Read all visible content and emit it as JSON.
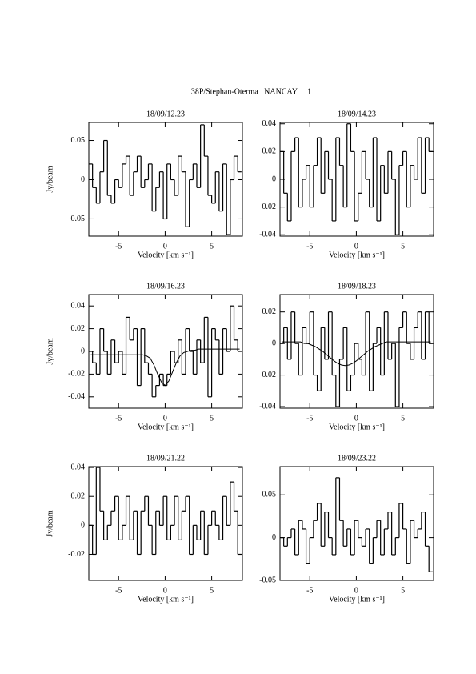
{
  "title": "38P/Stephan-Oterma   NANCAY     1",
  "chart_data": [
    {
      "type": "line",
      "title": "18/09/12.23",
      "x_label": "Velocity [km s⁻¹]",
      "y_label": "Jy/beam",
      "x": [
        -8,
        -7.6,
        -7.2,
        -6.8,
        -6.4,
        -6,
        -5.6,
        -5.2,
        -4.8,
        -4.4,
        -4,
        -3.6,
        -3.2,
        -2.8,
        -2.4,
        -2,
        -1.6,
        -1.2,
        -0.8,
        -0.4,
        0,
        0.4,
        0.8,
        1.2,
        1.6,
        2,
        2.4,
        2.8,
        3.2,
        3.6,
        4,
        4.4,
        4.8,
        5.2,
        5.6,
        6,
        6.4,
        6.8,
        7.2,
        7.6,
        8
      ],
      "series": [
        {
          "color": "#000000",
          "step": true,
          "values": [
            0.02,
            -0.01,
            -0.03,
            0.01,
            0.05,
            -0.02,
            -0.03,
            0.0,
            -0.01,
            0.02,
            0.03,
            -0.02,
            0.01,
            0.03,
            -0.01,
            0.0,
            0.02,
            -0.04,
            -0.01,
            0.01,
            -0.05,
            0.02,
            0.0,
            -0.02,
            0.03,
            0.01,
            -0.06,
            0.0,
            0.02,
            -0.01,
            0.07,
            0.03,
            -0.02,
            -0.03,
            0.01,
            -0.04,
            0.02,
            -0.07,
            0.0,
            0.03,
            0.01
          ]
        }
      ],
      "xlim": [
        -8.2,
        8.3
      ],
      "xticks": [
        -5,
        0,
        5
      ],
      "ylim": [
        -0.072,
        0.073
      ],
      "yticks": [
        -0.05,
        0,
        0.05
      ]
    },
    {
      "type": "line",
      "title": "18/09/14.23",
      "x_label": "Velocity [km s⁻¹]",
      "x": [
        -8,
        -7.6,
        -7.2,
        -6.8,
        -6.4,
        -6,
        -5.6,
        -5.2,
        -4.8,
        -4.4,
        -4,
        -3.6,
        -3.2,
        -2.8,
        -2.4,
        -2,
        -1.6,
        -1.2,
        -0.8,
        -0.4,
        0,
        0.4,
        0.8,
        1.2,
        1.6,
        2,
        2.4,
        2.8,
        3.2,
        3.6,
        4,
        4.4,
        4.8,
        5.2,
        5.6,
        6,
        6.4,
        6.8,
        7.2,
        7.6,
        8
      ],
      "series": [
        {
          "color": "#000000",
          "step": true,
          "values": [
            0.02,
            -0.01,
            -0.03,
            0.02,
            0.03,
            -0.02,
            0.0,
            0.01,
            -0.02,
            0.01,
            0.03,
            -0.01,
            0.02,
            0.0,
            -0.03,
            0.03,
            0.01,
            -0.02,
            0.04,
            0.02,
            -0.03,
            -0.01,
            0.02,
            0.0,
            -0.02,
            0.03,
            -0.03,
            0.01,
            -0.01,
            0.02,
            0.0,
            -0.04,
            0.01,
            0.02,
            -0.02,
            0.01,
            0.0,
            0.03,
            -0.01,
            0.03,
            0.02
          ]
        }
      ],
      "xlim": [
        -8.2,
        8.3
      ],
      "xticks": [
        -5,
        0,
        5
      ],
      "ylim": [
        -0.041,
        0.041
      ],
      "yticks": [
        -0.04,
        -0.02,
        0,
        0.02,
        0.04
      ]
    },
    {
      "type": "line",
      "title": "18/09/16.23",
      "x_label": "Velocity [km s⁻¹]",
      "y_label": "Jy/beam",
      "x": [
        -8,
        -7.6,
        -7.2,
        -6.8,
        -6.4,
        -6,
        -5.6,
        -5.2,
        -4.8,
        -4.4,
        -4,
        -3.6,
        -3.2,
        -2.8,
        -2.4,
        -2,
        -1.6,
        -1.2,
        -0.8,
        -0.4,
        0,
        0.4,
        0.8,
        1.2,
        1.6,
        2,
        2.4,
        2.8,
        3.2,
        3.6,
        4,
        4.4,
        4.8,
        5.2,
        5.6,
        6,
        6.4,
        6.8,
        7.2,
        7.6,
        8
      ],
      "series": [
        {
          "color": "#000000",
          "step": true,
          "values": [
            0.0,
            -0.01,
            -0.02,
            0.02,
            0.0,
            -0.02,
            0.01,
            -0.01,
            0.0,
            -0.02,
            0.03,
            0.01,
            0.02,
            -0.03,
            0.02,
            -0.01,
            -0.02,
            -0.04,
            -0.03,
            -0.02,
            -0.03,
            -0.02,
            0.0,
            -0.01,
            0.01,
            -0.02,
            0.02,
            0.0,
            -0.02,
            0.01,
            -0.01,
            0.03,
            -0.04,
            0.02,
            0.01,
            -0.02,
            0.02,
            0.0,
            0.04,
            0.01,
            0.0
          ]
        },
        {
          "color": "#000000",
          "values": [
            -0.003,
            -0.003,
            -0.003,
            -0.003,
            -0.003,
            -0.003,
            -0.003,
            -0.003,
            -0.003,
            -0.003,
            -0.003,
            -0.003,
            -0.003,
            -0.003,
            -0.003,
            -0.004,
            -0.006,
            -0.012,
            -0.02,
            -0.027,
            -0.03,
            -0.026,
            -0.018,
            -0.01,
            -0.004,
            -0.001,
            0.0,
            0.001,
            0.001,
            0.002,
            0.002,
            0.002,
            0.002,
            0.002,
            0.002,
            0.002,
            0.002,
            0.002,
            0.002,
            0.002,
            0.002
          ]
        }
      ],
      "xlim": [
        -8.2,
        8.3
      ],
      "xticks": [
        -5,
        0,
        5
      ],
      "ylim": [
        -0.05,
        0.05
      ],
      "yticks": [
        -0.04,
        -0.02,
        0,
        0.02,
        0.04
      ]
    },
    {
      "type": "line",
      "title": "18/09/18.23",
      "x_label": "Velocity [km s⁻¹]",
      "x": [
        -8,
        -7.6,
        -7.2,
        -6.8,
        -6.4,
        -6,
        -5.6,
        -5.2,
        -4.8,
        -4.4,
        -4,
        -3.6,
        -3.2,
        -2.8,
        -2.4,
        -2,
        -1.6,
        -1.2,
        -0.8,
        -0.4,
        0,
        0.4,
        0.8,
        1.2,
        1.6,
        2,
        2.4,
        2.8,
        3.2,
        3.6,
        4,
        4.4,
        4.8,
        5.2,
        5.6,
        6,
        6.4,
        6.8,
        7.2,
        7.6,
        8
      ],
      "series": [
        {
          "color": "#000000",
          "step": true,
          "values": [
            0.0,
            0.01,
            -0.01,
            0.02,
            0.0,
            -0.02,
            0.01,
            0.0,
            0.02,
            -0.02,
            -0.03,
            0.01,
            -0.01,
            0.02,
            -0.02,
            -0.04,
            -0.01,
            0.01,
            -0.03,
            -0.02,
            0.0,
            -0.01,
            -0.02,
            0.02,
            -0.03,
            0.0,
            0.01,
            -0.02,
            0.02,
            -0.01,
            0.0,
            -0.04,
            0.01,
            0.02,
            0.0,
            -0.01,
            0.01,
            0.02,
            -0.01,
            0.02,
            0.0
          ]
        },
        {
          "color": "#000000",
          "values": [
            0.001,
            0.001,
            0.001,
            0.001,
            0.001,
            0.001,
            0.0,
            0.0,
            -0.001,
            -0.002,
            -0.0035,
            -0.005,
            -0.007,
            -0.009,
            -0.011,
            -0.0126,
            -0.0136,
            -0.014,
            -0.0136,
            -0.0126,
            -0.011,
            -0.009,
            -0.007,
            -0.005,
            -0.0035,
            -0.002,
            -0.001,
            0.0,
            0.001,
            0.001,
            0.001,
            0.001,
            0.001,
            0.001,
            0.001,
            0.001,
            0.001,
            0.001,
            0.001,
            0.001,
            0.001
          ]
        }
      ],
      "xlim": [
        -8.2,
        8.3
      ],
      "xticks": [
        -5,
        0,
        5
      ],
      "ylim": [
        -0.041,
        0.031
      ],
      "yticks": [
        -0.04,
        -0.02,
        0,
        0.02
      ]
    },
    {
      "type": "line",
      "title": "18/09/21.22",
      "x_label": "Velocity [km s⁻¹]",
      "y_label": "Jy/beam",
      "x": [
        -8,
        -7.6,
        -7.2,
        -6.8,
        -6.4,
        -6,
        -5.6,
        -5.2,
        -4.8,
        -4.4,
        -4,
        -3.6,
        -3.2,
        -2.8,
        -2.4,
        -2,
        -1.6,
        -1.2,
        -0.8,
        -0.4,
        0,
        0.4,
        0.8,
        1.2,
        1.6,
        2,
        2.4,
        2.8,
        3.2,
        3.6,
        4,
        4.4,
        4.8,
        5.2,
        5.6,
        6,
        6.4,
        6.8,
        7.2,
        7.6,
        8
      ],
      "series": [
        {
          "color": "#000000",
          "step": true,
          "values": [
            0.0,
            -0.02,
            0.04,
            0.01,
            -0.01,
            0.0,
            0.01,
            0.02,
            -0.01,
            0.0,
            0.02,
            -0.01,
            0.01,
            -0.02,
            0.01,
            0.02,
            0.0,
            -0.02,
            0.01,
            0.0,
            0.02,
            -0.01,
            0.0,
            0.02,
            -0.01,
            0.01,
            0.02,
            -0.02,
            0.0,
            -0.01,
            0.01,
            -0.02,
            0.0,
            0.01,
            0.0,
            -0.01,
            0.02,
            0.0,
            0.03,
            0.01,
            -0.02
          ]
        }
      ],
      "xlim": [
        -8.2,
        8.3
      ],
      "xticks": [
        -5,
        0,
        5
      ],
      "ylim": [
        -0.038,
        0.0406
      ],
      "yticks": [
        -0.02,
        0,
        0.02,
        0.04
      ]
    },
    {
      "type": "line",
      "title": "18/09/23.22",
      "x_label": "Velocity [km s⁻¹]",
      "x": [
        -8,
        -7.6,
        -7.2,
        -6.8,
        -6.4,
        -6,
        -5.6,
        -5.2,
        -4.8,
        -4.4,
        -4,
        -3.6,
        -3.2,
        -2.8,
        -2.4,
        -2,
        -1.6,
        -1.2,
        -0.8,
        -0.4,
        0,
        0.4,
        0.8,
        1.2,
        1.6,
        2,
        2.4,
        2.8,
        3.2,
        3.6,
        4,
        4.4,
        4.8,
        5.2,
        5.6,
        6,
        6.4,
        6.8,
        7.2,
        7.6,
        8
      ],
      "series": [
        {
          "color": "#000000",
          "step": true,
          "values": [
            0.0,
            -0.01,
            0.0,
            0.01,
            -0.02,
            0.02,
            0.01,
            -0.03,
            0.0,
            0.02,
            0.04,
            -0.01,
            0.03,
            0.0,
            -0.02,
            0.07,
            0.02,
            -0.01,
            0.01,
            -0.02,
            0.02,
            0.0,
            -0.01,
            0.01,
            -0.03,
            0.0,
            0.02,
            -0.02,
            0.01,
            0.03,
            -0.02,
            0.0,
            0.04,
            0.01,
            -0.03,
            0.02,
            0.0,
            0.01,
            0.03,
            -0.01,
            -0.04
          ]
        }
      ],
      "xlim": [
        -8.2,
        8.3
      ],
      "xticks": [
        -5,
        0,
        5
      ],
      "ylim": [
        -0.05,
        0.083
      ],
      "yticks": [
        -0.05,
        0,
        0.05
      ]
    }
  ]
}
